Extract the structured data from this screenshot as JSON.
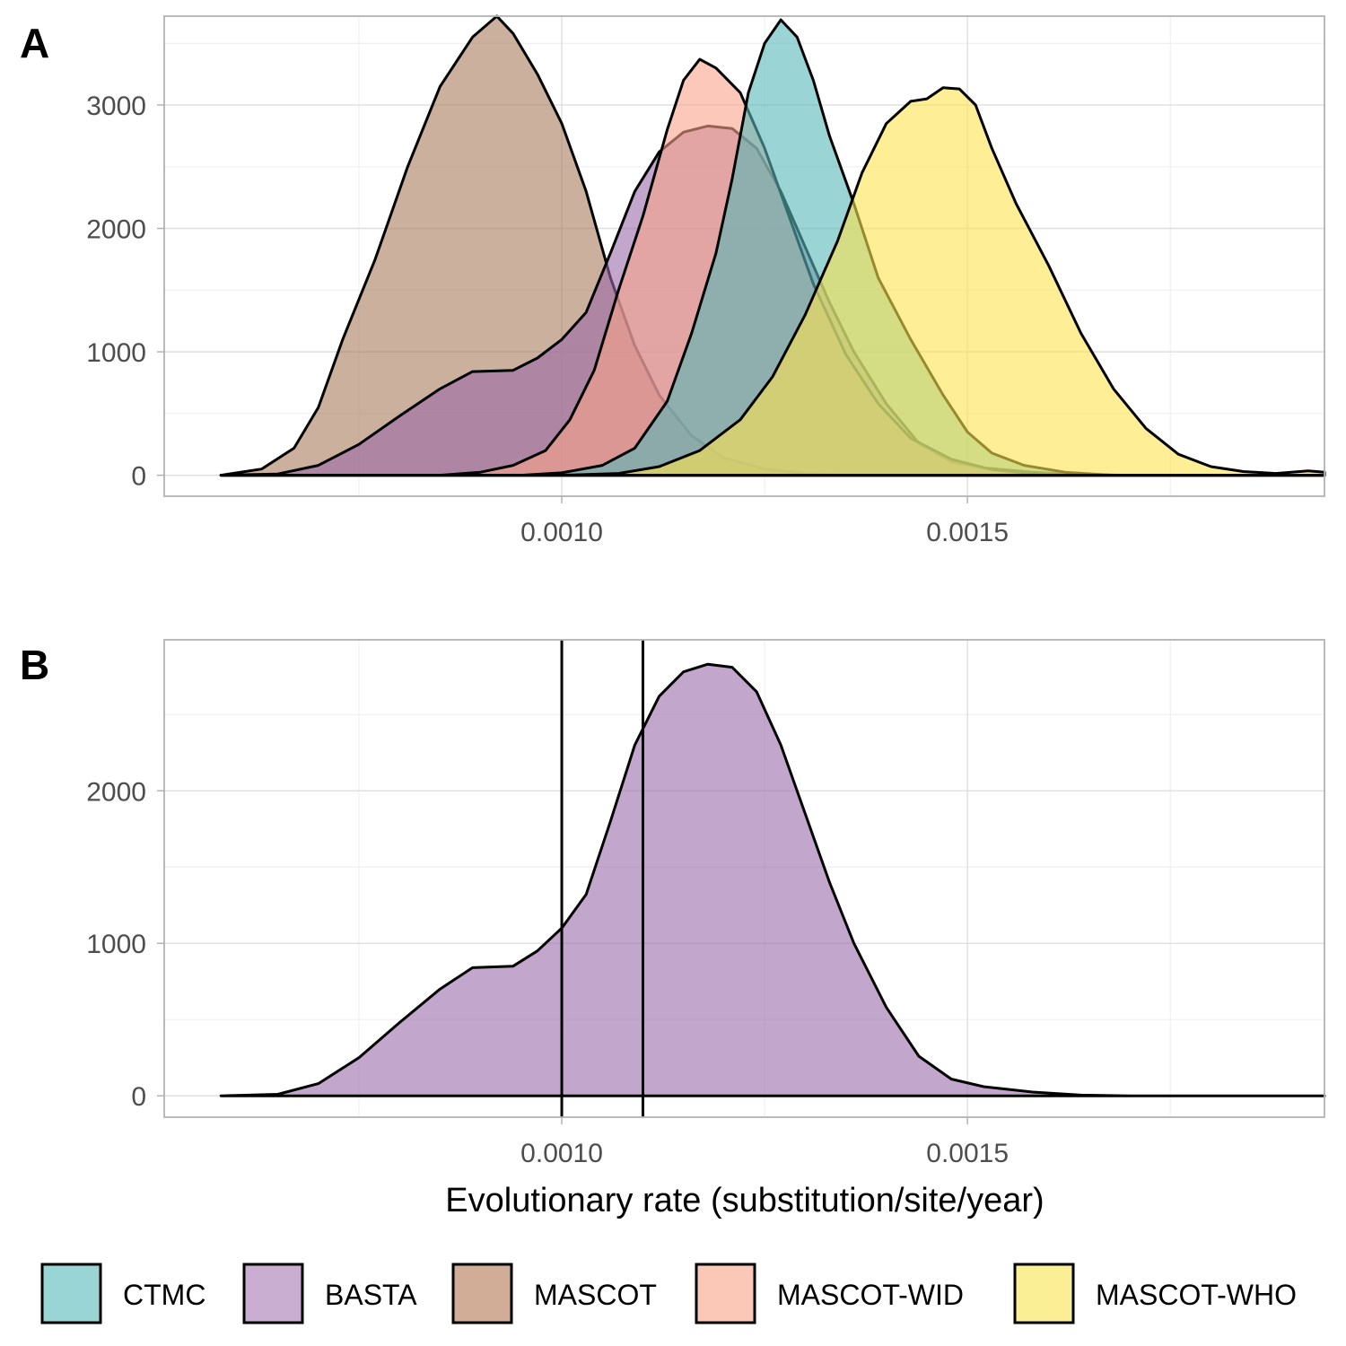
{
  "colors": {
    "CTMC": "#57b8b8",
    "BASTA": "#9b6aa8",
    "MASCOT": "#a77b5c",
    "MASCOT-WID": "#f9a48a",
    "MASCOT-WHO": "#fde24f",
    "CTMC_legend": "#9ad5d6",
    "BASTA_legend": "#c9aed2",
    "MASCOT_legend": "#d1ac97",
    "MASCOT-WID_legend": "#fbc8b8",
    "MASCOT-WHO_legend": "#fbef96"
  },
  "panel_a": {
    "label": "A"
  },
  "panel_b": {
    "label": "B"
  },
  "x_axis_title": "Evolutionary rate (substitution/site/year)",
  "legend": [
    "CTMC",
    "BASTA",
    "MASCOT",
    "MASCOT-WID",
    "MASCOT-WHO"
  ],
  "chart_data": [
    {
      "type": "area",
      "panel": "A",
      "xlim": [
        0.00051,
        0.00194
      ],
      "ylim": [
        -170,
        3720
      ],
      "x_ticks": [
        0.001,
        0.0015
      ],
      "x_tick_labels": [
        "0.0010",
        "0.0015"
      ],
      "y_ticks": [
        0,
        1000,
        2000,
        3000
      ],
      "y_tick_labels": [
        "0",
        "1000",
        "2000",
        "3000"
      ],
      "grid": true,
      "series": [
        {
          "name": "MASCOT",
          "points": [
            [
              0.00058,
              0
            ],
            [
              0.00063,
              50
            ],
            [
              0.00067,
              220
            ],
            [
              0.0007,
              550
            ],
            [
              0.00073,
              1100
            ],
            [
              0.00077,
              1750
            ],
            [
              0.00081,
              2500
            ],
            [
              0.00085,
              3150
            ],
            [
              0.00089,
              3550
            ],
            [
              0.00092,
              3720
            ],
            [
              0.00094,
              3580
            ],
            [
              0.00097,
              3250
            ],
            [
              0.001,
              2850
            ],
            [
              0.00103,
              2300
            ],
            [
              0.00106,
              1600
            ],
            [
              0.00109,
              1050
            ],
            [
              0.00112,
              650
            ],
            [
              0.00116,
              320
            ],
            [
              0.0012,
              140
            ],
            [
              0.00125,
              50
            ],
            [
              0.0013,
              15
            ],
            [
              0.00135,
              0
            ],
            [
              0.00194,
              0
            ]
          ]
        },
        {
          "name": "BASTA",
          "points": [
            [
              0.00058,
              0
            ],
            [
              0.00065,
              10
            ],
            [
              0.0007,
              80
            ],
            [
              0.00075,
              250
            ],
            [
              0.0008,
              480
            ],
            [
              0.00085,
              700
            ],
            [
              0.00089,
              840
            ],
            [
              0.00094,
              850
            ],
            [
              0.00097,
              950
            ],
            [
              0.001,
              1100
            ],
            [
              0.00103,
              1320
            ],
            [
              0.00106,
              1800
            ],
            [
              0.00109,
              2300
            ],
            [
              0.00112,
              2620
            ],
            [
              0.00115,
              2780
            ],
            [
              0.00118,
              2830
            ],
            [
              0.00121,
              2810
            ],
            [
              0.00124,
              2650
            ],
            [
              0.00127,
              2300
            ],
            [
              0.0013,
              1850
            ],
            [
              0.00133,
              1400
            ],
            [
              0.00136,
              1000
            ],
            [
              0.0014,
              580
            ],
            [
              0.00144,
              260
            ],
            [
              0.00148,
              110
            ],
            [
              0.00152,
              60
            ],
            [
              0.00158,
              25
            ],
            [
              0.00164,
              5
            ],
            [
              0.0017,
              0
            ],
            [
              0.00194,
              0
            ]
          ]
        },
        {
          "name": "MASCOT-WID",
          "points": [
            [
              0.00058,
              0
            ],
            [
              0.00085,
              0
            ],
            [
              0.0009,
              25
            ],
            [
              0.00094,
              80
            ],
            [
              0.00098,
              200
            ],
            [
              0.00101,
              450
            ],
            [
              0.00104,
              850
            ],
            [
              0.00107,
              1500
            ],
            [
              0.0011,
              2100
            ],
            [
              0.00113,
              2800
            ],
            [
              0.00115,
              3200
            ],
            [
              0.00117,
              3370
            ],
            [
              0.00119,
              3300
            ],
            [
              0.00122,
              3100
            ],
            [
              0.00125,
              2650
            ],
            [
              0.00128,
              2100
            ],
            [
              0.00131,
              1550
            ],
            [
              0.00135,
              980
            ],
            [
              0.00139,
              580
            ],
            [
              0.00143,
              300
            ],
            [
              0.00148,
              130
            ],
            [
              0.00153,
              45
            ],
            [
              0.00158,
              15
            ],
            [
              0.00165,
              0
            ],
            [
              0.00194,
              0
            ]
          ]
        },
        {
          "name": "CTMC",
          "points": [
            [
              0.00058,
              0
            ],
            [
              0.00095,
              0
            ],
            [
              0.001,
              20
            ],
            [
              0.00105,
              80
            ],
            [
              0.00109,
              220
            ],
            [
              0.00113,
              600
            ],
            [
              0.00116,
              1150
            ],
            [
              0.00119,
              1800
            ],
            [
              0.00121,
              2400
            ],
            [
              0.00123,
              3100
            ],
            [
              0.00125,
              3500
            ],
            [
              0.00127,
              3690
            ],
            [
              0.00129,
              3550
            ],
            [
              0.00131,
              3200
            ],
            [
              0.00133,
              2750
            ],
            [
              0.00136,
              2200
            ],
            [
              0.00139,
              1600
            ],
            [
              0.00143,
              1100
            ],
            [
              0.00147,
              650
            ],
            [
              0.0015,
              350
            ],
            [
              0.00153,
              180
            ],
            [
              0.00157,
              80
            ],
            [
              0.00162,
              25
            ],
            [
              0.00168,
              0
            ],
            [
              0.00194,
              0
            ]
          ]
        },
        {
          "name": "MASCOT-WHO",
          "points": [
            [
              0.00058,
              0
            ],
            [
              0.001,
              0
            ],
            [
              0.00107,
              15
            ],
            [
              0.00112,
              70
            ],
            [
              0.00117,
              200
            ],
            [
              0.00122,
              450
            ],
            [
              0.00126,
              800
            ],
            [
              0.0013,
              1300
            ],
            [
              0.00134,
              1900
            ],
            [
              0.00137,
              2450
            ],
            [
              0.0014,
              2850
            ],
            [
              0.00143,
              3030
            ],
            [
              0.00145,
              3050
            ],
            [
              0.00147,
              3140
            ],
            [
              0.00149,
              3130
            ],
            [
              0.00151,
              3000
            ],
            [
              0.00153,
              2650
            ],
            [
              0.00156,
              2200
            ],
            [
              0.0016,
              1700
            ],
            [
              0.00164,
              1150
            ],
            [
              0.00168,
              700
            ],
            [
              0.00172,
              380
            ],
            [
              0.00176,
              170
            ],
            [
              0.0018,
              70
            ],
            [
              0.00184,
              30
            ],
            [
              0.00188,
              15
            ],
            [
              0.00192,
              35
            ],
            [
              0.00194,
              25
            ]
          ]
        }
      ]
    },
    {
      "type": "area",
      "panel": "B",
      "xlim": [
        0.00051,
        0.00194
      ],
      "ylim": [
        -140,
        2990
      ],
      "x_ticks": [
        0.001,
        0.0015
      ],
      "x_tick_labels": [
        "0.0010",
        "0.0015"
      ],
      "y_ticks": [
        0,
        1000,
        2000
      ],
      "y_tick_labels": [
        "0",
        "1000",
        "2000"
      ],
      "xlabel": "Evolutionary rate (substitution/site/year)",
      "grid": true,
      "vlines": [
        0.001,
        0.0011
      ],
      "series": [
        {
          "name": "BASTA",
          "points": [
            [
              0.00058,
              0
            ],
            [
              0.00065,
              10
            ],
            [
              0.0007,
              80
            ],
            [
              0.00075,
              250
            ],
            [
              0.0008,
              480
            ],
            [
              0.00085,
              700
            ],
            [
              0.00089,
              840
            ],
            [
              0.00094,
              850
            ],
            [
              0.00097,
              950
            ],
            [
              0.001,
              1100
            ],
            [
              0.00103,
              1320
            ],
            [
              0.00106,
              1800
            ],
            [
              0.00109,
              2300
            ],
            [
              0.00112,
              2620
            ],
            [
              0.00115,
              2780
            ],
            [
              0.00118,
              2830
            ],
            [
              0.00121,
              2810
            ],
            [
              0.00124,
              2650
            ],
            [
              0.00127,
              2300
            ],
            [
              0.0013,
              1850
            ],
            [
              0.00133,
              1400
            ],
            [
              0.00136,
              1000
            ],
            [
              0.0014,
              580
            ],
            [
              0.00144,
              260
            ],
            [
              0.00148,
              110
            ],
            [
              0.00152,
              60
            ],
            [
              0.00158,
              25
            ],
            [
              0.00164,
              5
            ],
            [
              0.0017,
              0
            ],
            [
              0.00194,
              0
            ]
          ]
        }
      ]
    }
  ]
}
